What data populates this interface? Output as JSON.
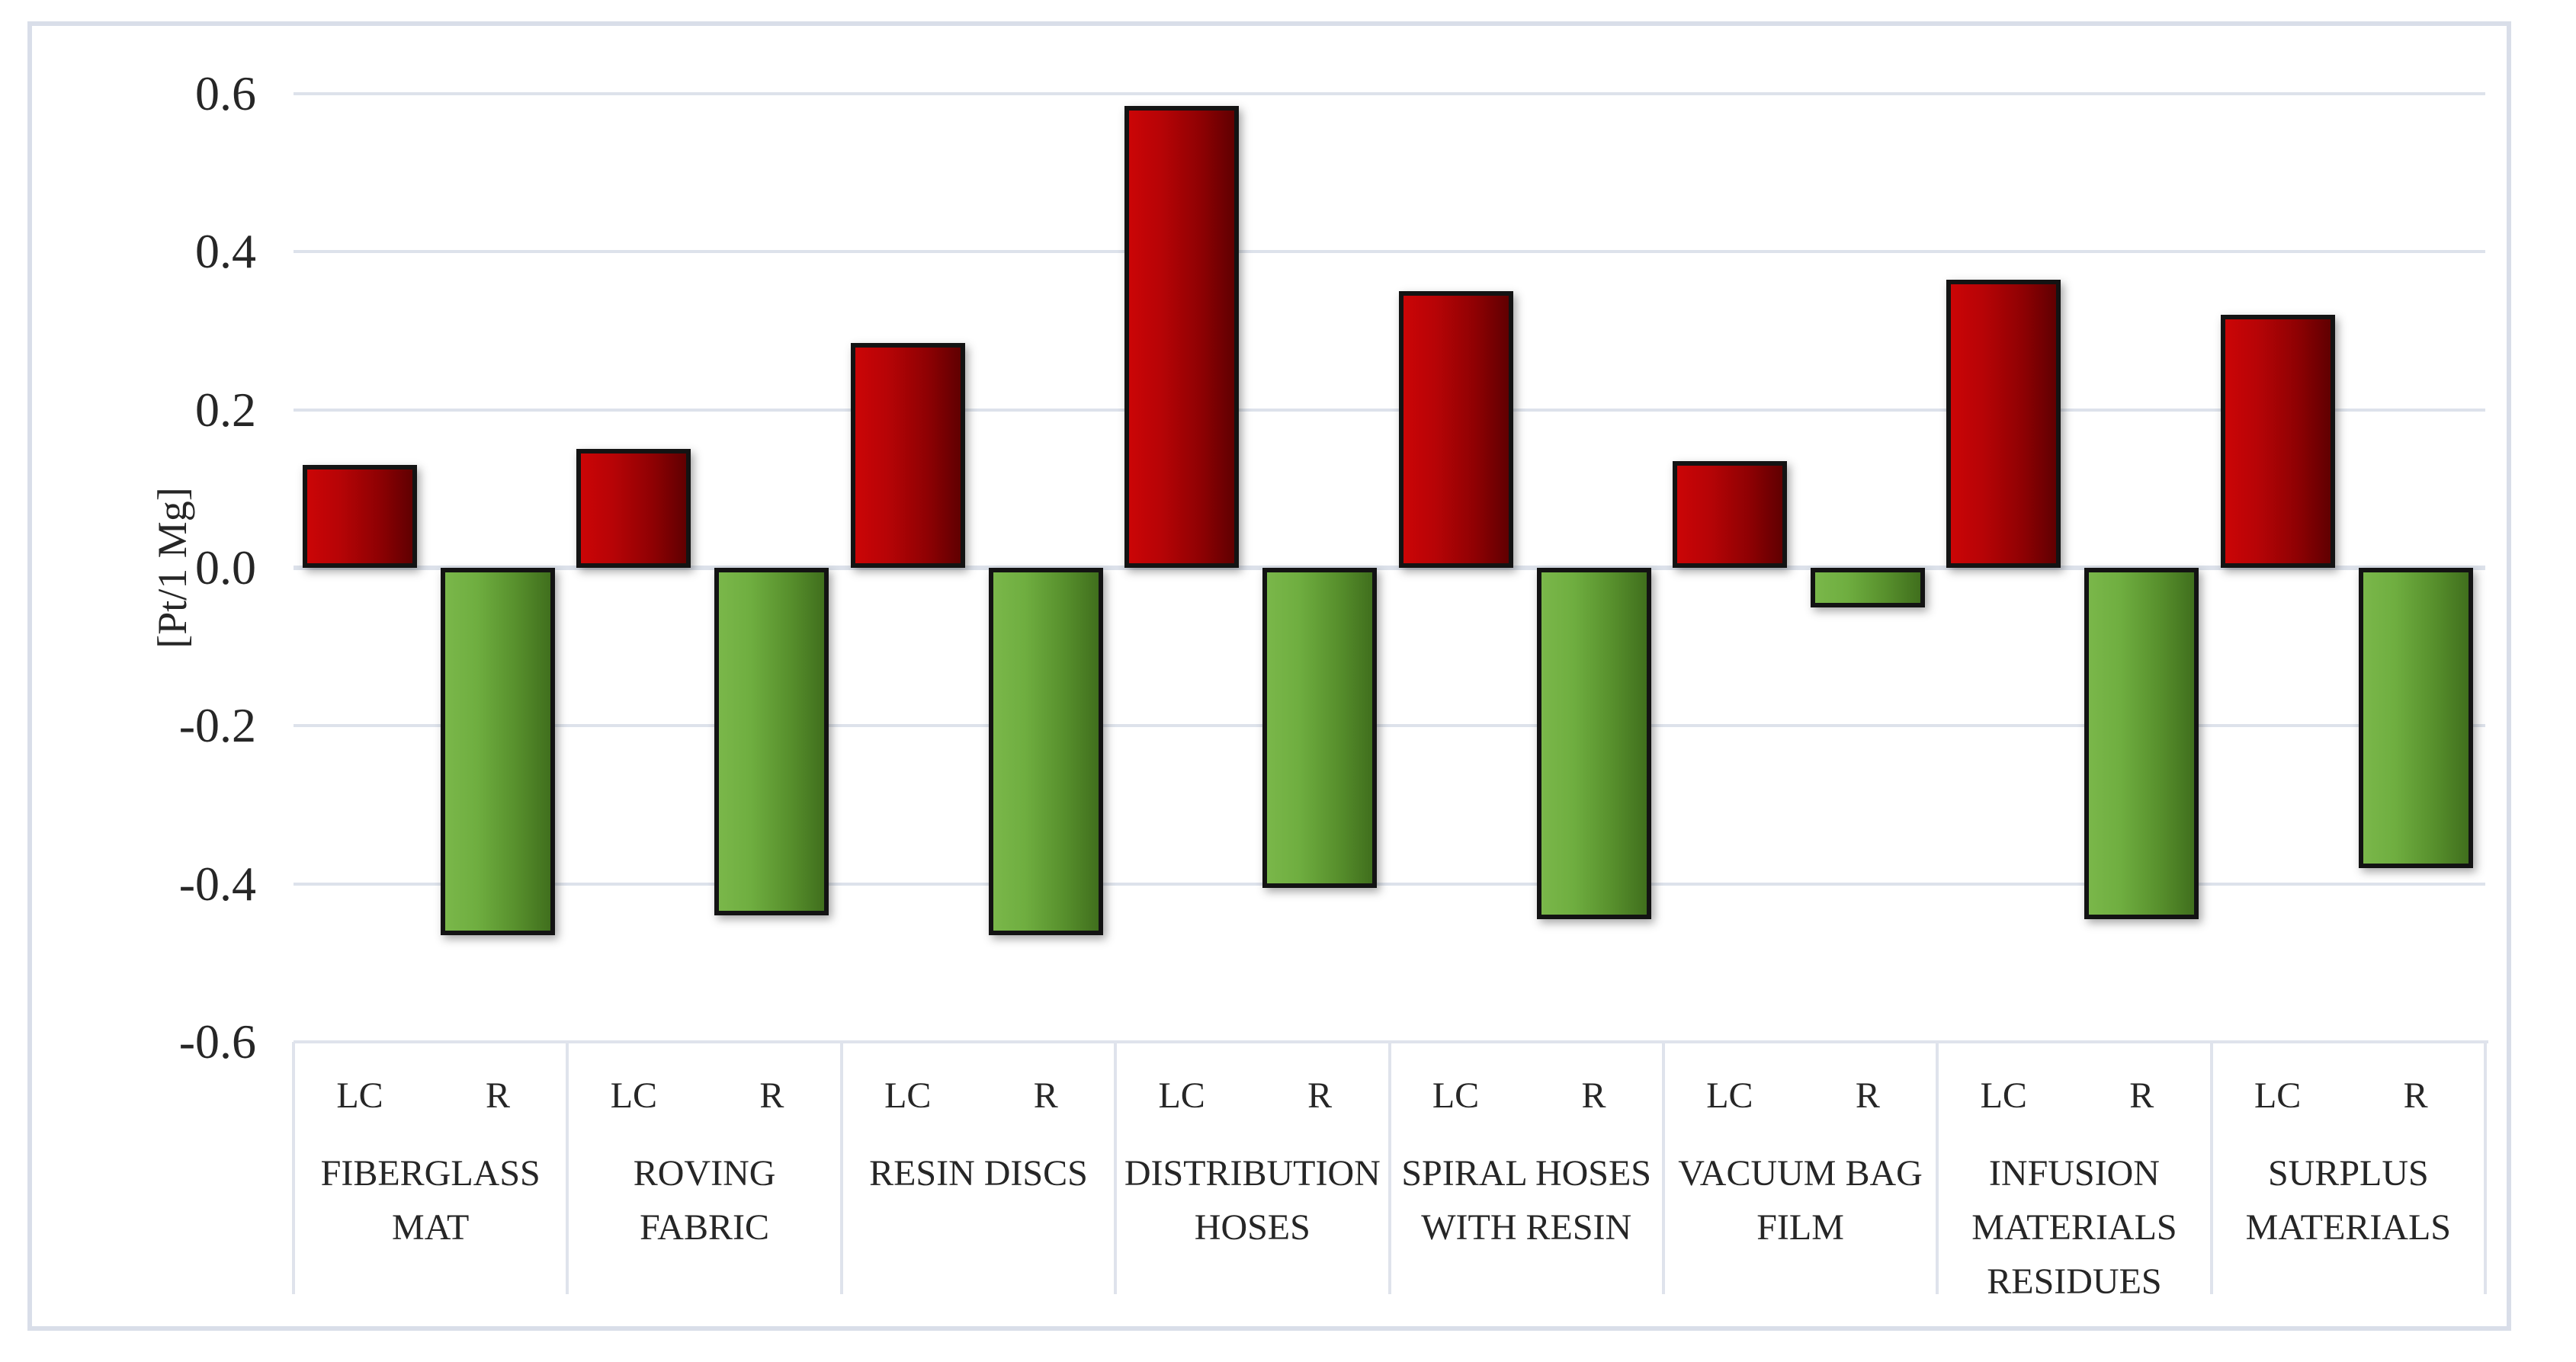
{
  "figure": {
    "background_color": "#ffffff",
    "frame_color": "#d9dee9",
    "gridline_color": "#dde2eb",
    "text_color": "#262626"
  },
  "chart_data": {
    "type": "bar",
    "title": "",
    "xlabel": "",
    "ylabel": "[Pt/1 Mg]",
    "ylim": [
      -0.6,
      0.6
    ],
    "ytick_values": [
      0.6,
      0.4,
      0.2,
      0.0,
      -0.2,
      -0.4,
      -0.6
    ],
    "ytick_labels": [
      "0.6",
      "0.4",
      "0.2",
      "0.0",
      "-0.2",
      "-0.4",
      "-0.6"
    ],
    "grid": true,
    "legend_position": "none",
    "bar_sublabels": [
      "LC",
      "R"
    ],
    "categories": [
      "FIBERGLASS MAT",
      "ROVING FABRIC",
      "RESIN DISCS",
      "DISTRIBUTION HOSES",
      "SPIRAL HOSES WITH RESIN",
      "VACUUM BAG FILM",
      "INFUSION MATERIALS RESIDUES",
      "SURPLUS MATERIALS"
    ],
    "series": [
      {
        "name": "LC",
        "color_gradient": [
          "#cb0506",
          "#8f0103",
          "#600001"
        ],
        "values": [
          0.13,
          0.15,
          0.285,
          0.585,
          0.35,
          0.135,
          0.365,
          0.32
        ]
      },
      {
        "name": "R",
        "color_gradient": [
          "#7ab74a",
          "#578f2c",
          "#406f1d"
        ],
        "values": [
          -0.465,
          -0.44,
          -0.465,
          -0.405,
          -0.445,
          -0.05,
          -0.445,
          -0.38
        ]
      }
    ],
    "bar_border_color": "#131313"
  }
}
